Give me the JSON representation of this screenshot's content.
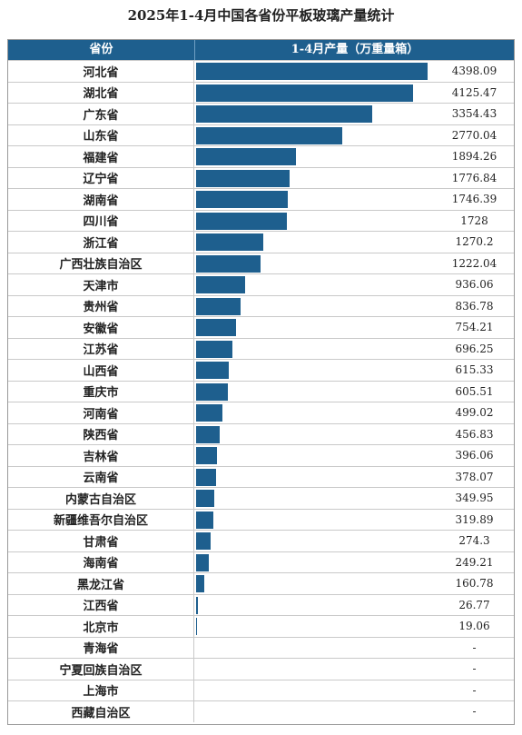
{
  "title": "2025年1-4月中国各省份平板玻璃产量统计",
  "header": {
    "col1": "省份",
    "col2": "1-4月产量（万重量箱）"
  },
  "colors": {
    "header_bg": "#1e5f8e",
    "bar": "#1e5f8e"
  },
  "chart_data": {
    "type": "bar",
    "orientation": "horizontal",
    "title": "2025年1-4月中国各省份平板玻璃产量统计",
    "xlabel": "1-4月产量（万重量箱）",
    "ylabel": "省份",
    "xlim": [
      0,
      4398.09
    ],
    "categories": [
      "河北省",
      "湖北省",
      "广东省",
      "山东省",
      "福建省",
      "辽宁省",
      "湖南省",
      "四川省",
      "浙江省",
      "广西壮族自治区",
      "天津市",
      "贵州省",
      "安徽省",
      "江苏省",
      "山西省",
      "重庆市",
      "河南省",
      "陕西省",
      "吉林省",
      "云南省",
      "内蒙古自治区",
      "新疆维吾尔自治区",
      "甘肃省",
      "海南省",
      "黑龙江省",
      "江西省",
      "北京市",
      "青海省",
      "宁夏回族自治区",
      "上海市",
      "西藏自治区"
    ],
    "values": [
      4398.09,
      4125.47,
      3354.43,
      2770.04,
      1894.26,
      1776.84,
      1746.39,
      1728,
      1270.2,
      1222.04,
      936.06,
      836.78,
      754.21,
      696.25,
      615.33,
      605.51,
      499.02,
      456.83,
      396.06,
      378.07,
      349.95,
      319.89,
      274.3,
      249.21,
      160.78,
      26.77,
      19.06,
      null,
      null,
      null,
      null
    ],
    "labels": [
      "4398.09",
      "4125.47",
      "3354.43",
      "2770.04",
      "1894.26",
      "1776.84",
      "1746.39",
      "1728",
      "1270.2",
      "1222.04",
      "936.06",
      "836.78",
      "754.21",
      "696.25",
      "615.33",
      "605.51",
      "499.02",
      "456.83",
      "396.06",
      "378.07",
      "349.95",
      "319.89",
      "274.3",
      "249.21",
      "160.78",
      "26.77",
      "19.06",
      "-",
      "-",
      "-",
      "-"
    ]
  }
}
